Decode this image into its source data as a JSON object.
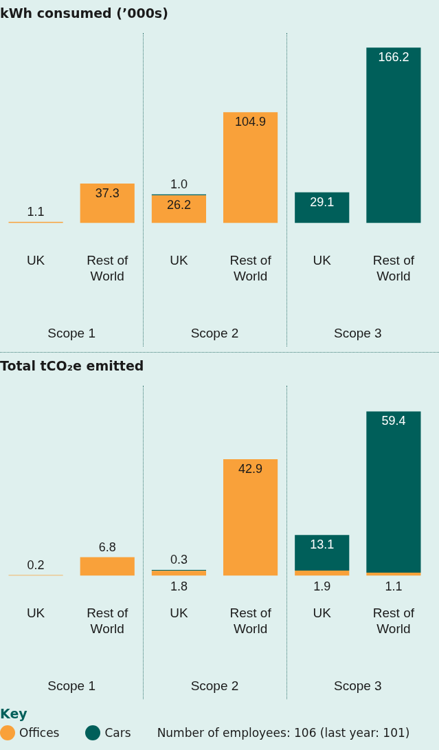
{
  "chart_data": [
    {
      "type": "bar",
      "title": "kWh consumed (’000s)",
      "stacked": true,
      "categories": [
        "UK",
        "Rest of World",
        "UK",
        "Rest of World",
        "UK",
        "Rest of World"
      ],
      "series": [
        {
          "color": "#f9a13a",
          "values": [
            1.1,
            37.3,
            26.2,
            104.9,
            null,
            null
          ],
          "value_labels": [
            "1.1",
            "37.3",
            "26.2",
            "104.9",
            null,
            null
          ]
        },
        {
          "color": "#005f5a",
          "values": [
            null,
            null,
            1.0,
            null,
            29.1,
            166.2
          ],
          "value_labels": [
            null,
            null,
            "1.0",
            null,
            "29.1",
            "166.2"
          ]
        }
      ],
      "annotations": [
        "Scope 1",
        "Scope 2",
        "Scope 3"
      ]
    },
    {
      "type": "bar",
      "title": "Total tCO₂e emitted",
      "stacked": true,
      "data_labels": true,
      "legend": "bottom",
      "legend_title": "Key",
      "categories": [
        "UK",
        "Rest of World",
        "UK",
        "Rest of World",
        "UK",
        "Rest of World"
      ],
      "series": [
        {
          "name": "Offices",
          "color": "#f9a13a",
          "values": [
            0.2,
            6.8,
            1.8,
            42.9,
            1.9,
            1.1
          ]
        },
        {
          "name": "Cars",
          "color": "#005f5a",
          "values": [
            null,
            null,
            0.3,
            null,
            13.1,
            59.4
          ]
        }
      ],
      "annotations": [
        "Scope 1",
        "Scope 2",
        "Scope 3",
        "Number of employees: 106 (last year: 101)"
      ]
    }
  ]
}
